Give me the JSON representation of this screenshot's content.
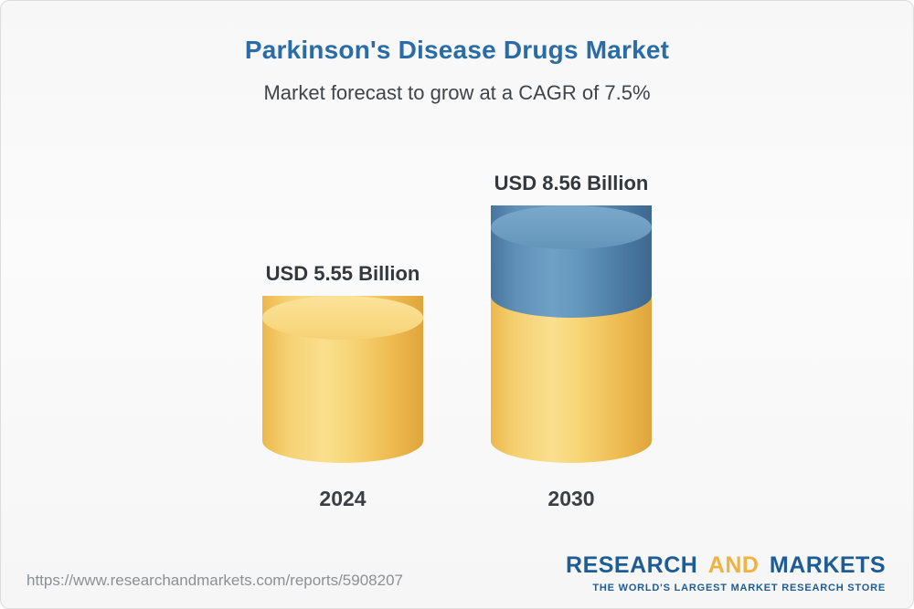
{
  "page": {
    "background": "#f9f9f9",
    "border_color": "#dcdcdc"
  },
  "header": {
    "title": "Parkinson's Disease Drugs Market",
    "subtitle": "Market forecast to grow at a CAGR of 7.5%",
    "title_color": "#2a6ca6"
  },
  "chart_data": {
    "type": "bar",
    "variant": "3d-cylinder",
    "title": "Parkinson's Disease Drugs Market",
    "subtitle": "Market forecast to grow at a CAGR of 7.5%",
    "unit": "USD Billion",
    "categories": [
      "2024",
      "2030"
    ],
    "values": [
      5.55,
      8.56
    ],
    "value_labels": [
      "USD 5.55 Billion",
      "USD 8.56 Billion"
    ],
    "cagr_percent": 7.5,
    "base_value": 5.55,
    "series_colors": {
      "base": "#F4CD66",
      "growth": "#4E7DA7"
    },
    "ylim": [
      0,
      9
    ],
    "grid": false,
    "legend": "none"
  },
  "footer": {
    "url": "https://www.researchandmarkets.com/reports/5908207",
    "logo": {
      "word1": "RESEARCH",
      "word2": "AND",
      "word3": "MARKETS",
      "tagline": "THE WORLD'S LARGEST MARKET RESEARCH STORE",
      "blue": "#1d5c94",
      "yellow": "#f0b33f"
    }
  }
}
